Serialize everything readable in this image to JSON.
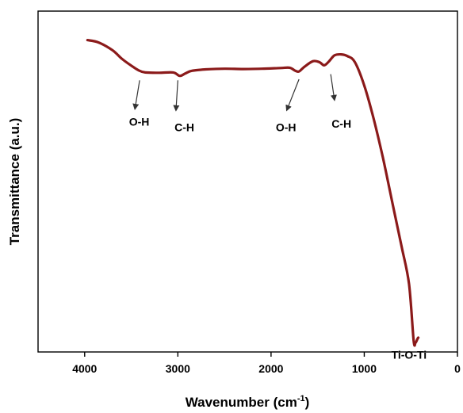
{
  "chart_data": {
    "type": "line",
    "xlabel": "Wavenumber (cm",
    "xlabel_sup": "-1",
    "xlabel_close": ")",
    "ylabel": "Transmittance (a.u.)",
    "xlim": [
      4500,
      0
    ],
    "ylim": [
      0,
      100
    ],
    "x_ticks": [
      4000,
      3000,
      2000,
      1000,
      0
    ],
    "x_tick_labels": [
      "4000",
      "3000",
      "2000",
      "1000",
      "0"
    ],
    "y_ticks_shown": false,
    "grid": false,
    "line_color": "#8b1a1a",
    "series": [
      {
        "x": [
          3970,
          3850,
          3700,
          3600,
          3500,
          3420,
          3350,
          3200,
          3050,
          2980,
          2920,
          2850,
          2700,
          2500,
          2300,
          2100,
          1900,
          1800,
          1740,
          1700,
          1640,
          1550,
          1480,
          1430,
          1380,
          1320,
          1250,
          1180,
          1100,
          1000,
          900,
          800,
          700,
          600,
          520,
          470,
          450,
          430,
          420
        ],
        "y": [
          91.5,
          90.8,
          88.5,
          86.0,
          84.0,
          82.6,
          82.0,
          81.9,
          82.0,
          81.0,
          81.7,
          82.5,
          82.9,
          83.1,
          83.0,
          83.1,
          83.3,
          83.4,
          82.5,
          82.3,
          83.7,
          85.3,
          85.0,
          84.1,
          85.2,
          87.0,
          87.3,
          86.8,
          85.0,
          78.2,
          68.5,
          57.0,
          44.0,
          31.0,
          20.0,
          3.4,
          2.7,
          3.8,
          4.2
        ]
      }
    ],
    "annotations": [
      {
        "text": "O-H",
        "x": 3415,
        "y": 66.4,
        "arrow_from": [
          3410,
          79.7
        ],
        "arrow_to": [
          3460,
          71.4
        ]
      },
      {
        "text": "C-H",
        "x": 2930,
        "y": 64.8,
        "arrow_from": [
          3000,
          79.7
        ],
        "arrow_to": [
          3020,
          71.0
        ]
      },
      {
        "text": "O-H",
        "x": 1840,
        "y": 64.8,
        "arrow_from": [
          1700,
          80.0
        ],
        "arrow_to": [
          1830,
          71.0
        ]
      },
      {
        "text": "C-H",
        "x": 1245,
        "y": 65.8,
        "arrow_from": [
          1360,
          81.5
        ],
        "arrow_to": [
          1320,
          74.0
        ]
      },
      {
        "text": "Ti-O-Ti",
        "x": 520,
        "y": -2.0
      }
    ]
  }
}
